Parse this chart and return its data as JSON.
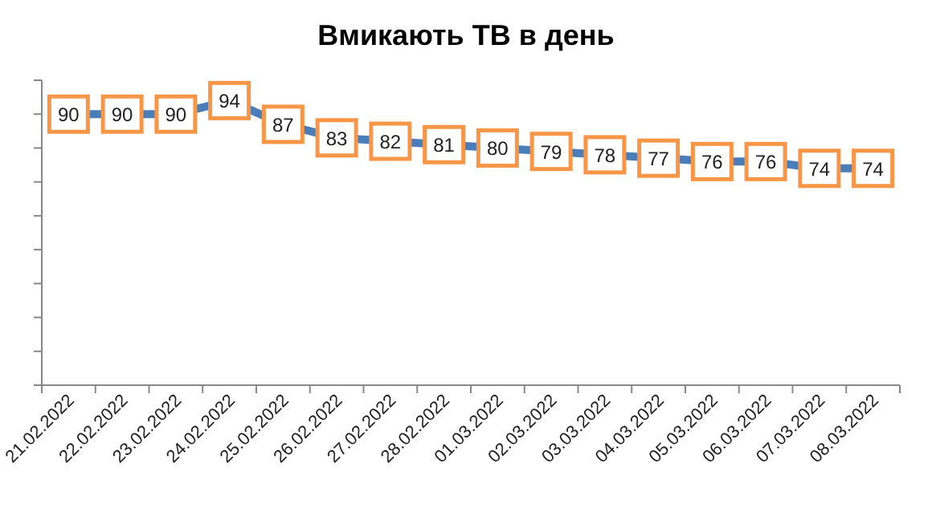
{
  "chart_data": {
    "type": "line",
    "title": "Вмикають ТВ в день",
    "categories": [
      "21.02.2022",
      "22.02.2022",
      "23.02.2022",
      "24.02.2022",
      "25.02.2022",
      "26.02.2022",
      "27.02.2022",
      "28.02.2022",
      "01.03.2022",
      "02.03.2022",
      "03.03.2022",
      "04.03.2022",
      "05.03.2022",
      "06.03.2022",
      "07.03.2022",
      "08.03.2022"
    ],
    "series": [
      {
        "color": "#4a7ebb",
        "values": [
          90,
          90,
          90,
          94,
          87,
          83,
          82,
          81,
          80,
          79,
          78,
          77,
          76,
          76,
          74,
          74
        ]
      }
    ],
    "ylim": [
      10,
      100
    ],
    "yticks": [
      {
        "value": 10,
        "label": null
      },
      {
        "value": 20,
        "label": null
      },
      {
        "value": 30,
        "label": null
      },
      {
        "value": 40,
        "label": null
      },
      {
        "value": 50,
        "label": null
      },
      {
        "value": 60,
        "label": null
      },
      {
        "value": 70,
        "label": null
      },
      {
        "value": 80,
        "label": null
      },
      {
        "value": 90,
        "label": null
      },
      {
        "value": 100,
        "label": null
      }
    ],
    "tick_labels": "x",
    "marker": "square",
    "data_labels": true,
    "grid": false
  }
}
